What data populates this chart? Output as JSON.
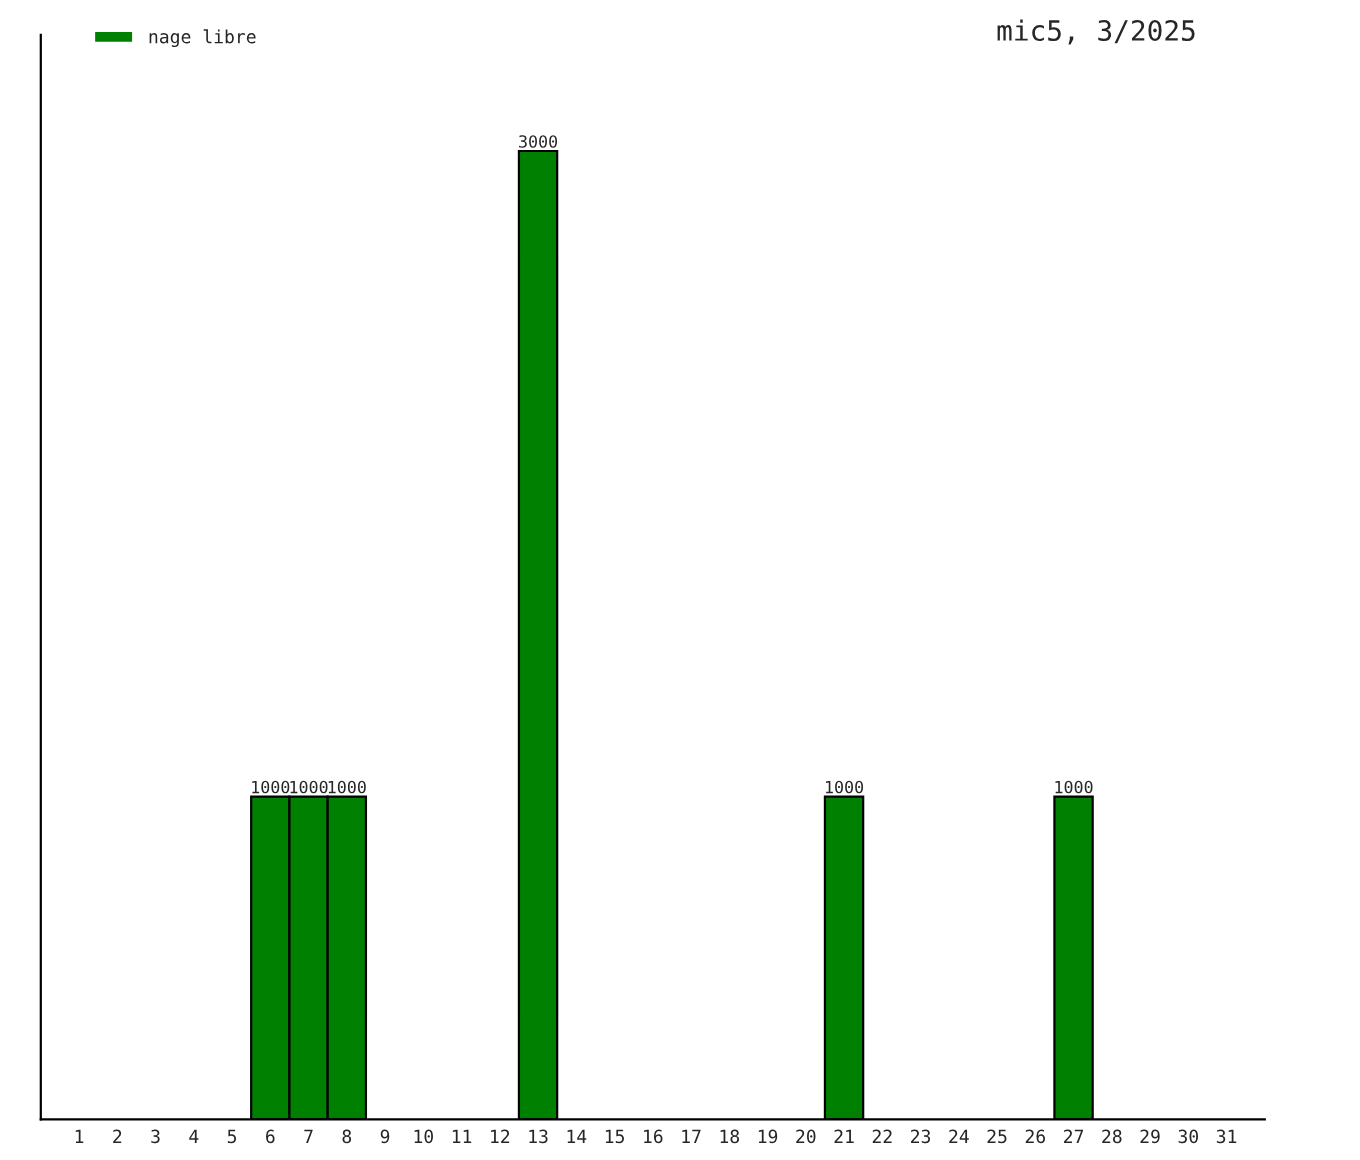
{
  "chart_data": {
    "type": "bar",
    "title": "mic5, 3/2025",
    "categories": [
      "1",
      "2",
      "3",
      "4",
      "5",
      "6",
      "7",
      "8",
      "9",
      "10",
      "11",
      "12",
      "13",
      "14",
      "15",
      "16",
      "17",
      "18",
      "19",
      "20",
      "21",
      "22",
      "23",
      "24",
      "25",
      "26",
      "27",
      "28",
      "29",
      "30",
      "31"
    ],
    "series": [
      {
        "name": "nage libre",
        "color": "#008000",
        "values": [
          null,
          null,
          null,
          null,
          null,
          1000,
          1000,
          1000,
          null,
          null,
          null,
          null,
          3000,
          null,
          null,
          null,
          null,
          null,
          null,
          null,
          1000,
          null,
          null,
          null,
          null,
          null,
          1000,
          null,
          null,
          null,
          null
        ]
      }
    ],
    "data_labels": true,
    "legend": "top left",
    "tick_labels": "x",
    "grid": false
  }
}
